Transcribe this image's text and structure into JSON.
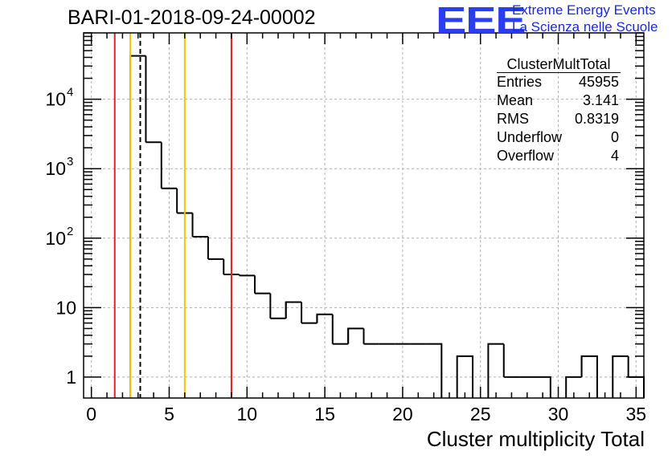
{
  "title": "BARI-01-2018-09-24-00002",
  "logo": {
    "mark": "EEE",
    "line1": "Extreme Energy Events",
    "line2": "La Scienza nelle Scuole",
    "color": "#2a3ef0"
  },
  "stats_box": {
    "title": "ClusterMultTotal",
    "rows": [
      {
        "label": "Entries",
        "value": "45955"
      },
      {
        "label": "Mean",
        "value": "3.141"
      },
      {
        "label": "RMS",
        "value": "0.8319"
      },
      {
        "label": "Underflow",
        "value": "0"
      },
      {
        "label": "Overflow",
        "value": "4"
      }
    ]
  },
  "chart_data": {
    "type": "histogram",
    "xlabel": "Cluster multiplicity Total",
    "ylabel": "",
    "xlim": [
      -0.5,
      35.5
    ],
    "ylim": [
      0.5,
      90000
    ],
    "yscale": "log",
    "grid": true,
    "bin_width": 1,
    "bins_low_edge": [
      2.5,
      3.5,
      4.5,
      5.5,
      6.5,
      7.5,
      8.5,
      9.5,
      10.5,
      11.5,
      12.5,
      13.5,
      14.5,
      15.5,
      16.5,
      17.5,
      18.5,
      19.5,
      20.5,
      21.5,
      22.5,
      23.5,
      24.5,
      25.5,
      26.5,
      27.5,
      28.5,
      29.5,
      30.5,
      31.5,
      32.5,
      33.5,
      34.5
    ],
    "counts": [
      42000,
      2400,
      520,
      230,
      105,
      50,
      30,
      29,
      16,
      7,
      12,
      6,
      8,
      3,
      5,
      3,
      3,
      3,
      3,
      3,
      0,
      2,
      0,
      3,
      1,
      1,
      1,
      0,
      1,
      2,
      0,
      2,
      1
    ],
    "xticks": [
      0,
      5,
      10,
      15,
      20,
      25,
      30,
      35
    ],
    "yticks": [
      {
        "value": 1,
        "label": "1"
      },
      {
        "value": 10,
        "label": "10"
      },
      {
        "value": 100,
        "label": "10",
        "exp": "2"
      },
      {
        "value": 1000,
        "label": "10",
        "exp": "3"
      },
      {
        "value": 10000,
        "label": "10",
        "exp": "4"
      }
    ],
    "vlines": [
      {
        "x": 1.5,
        "color": "#e02020",
        "style": "solid"
      },
      {
        "x": 2.5,
        "color": "#f5c400",
        "style": "solid"
      },
      {
        "x": 3.141,
        "color": "#000000",
        "style": "dashed"
      },
      {
        "x": 6.0,
        "color": "#f5c400",
        "style": "solid"
      },
      {
        "x": 9.0,
        "color": "#e02020",
        "style": "solid"
      }
    ]
  }
}
